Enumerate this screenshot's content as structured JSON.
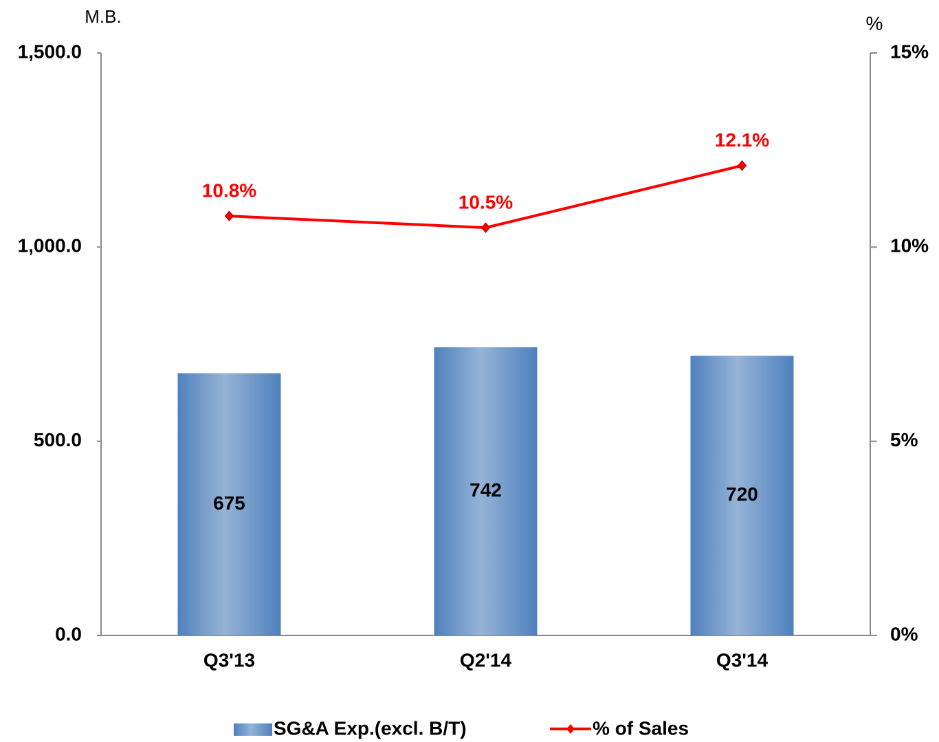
{
  "chart_data": {
    "type": "bar",
    "y_axis_label": "M.B.",
    "y2_axis_label": "%",
    "categories": [
      "Q3'13",
      "Q2'14",
      "Q3'14"
    ],
    "series": [
      {
        "name": "SG&A Exp.(excl. B/T)",
        "type": "bar",
        "color": "#4f81bd",
        "values": [
          675,
          742,
          720
        ]
      },
      {
        "name": "% of Sales",
        "type": "line",
        "axis": "y2",
        "color": "#ff0000",
        "values": [
          10.8,
          10.5,
          12.1
        ],
        "value_labels": [
          "10.8%",
          "10.5%",
          "12.1%"
        ]
      }
    ],
    "ylim": [
      0,
      1500
    ],
    "yticks": [
      {
        "value": 0,
        "label": "0.0"
      },
      {
        "value": 500,
        "label": "500.0"
      },
      {
        "value": 1000,
        "label": "1,000.0"
      },
      {
        "value": 1500,
        "label": "1,500.0"
      }
    ],
    "y2lim": [
      0,
      15
    ],
    "y2ticks": [
      {
        "value": 0,
        "label": "0%"
      },
      {
        "value": 5,
        "label": "5%"
      },
      {
        "value": 10,
        "label": "10%"
      },
      {
        "value": 15,
        "label": "15%"
      }
    ],
    "legend": "bottom"
  }
}
